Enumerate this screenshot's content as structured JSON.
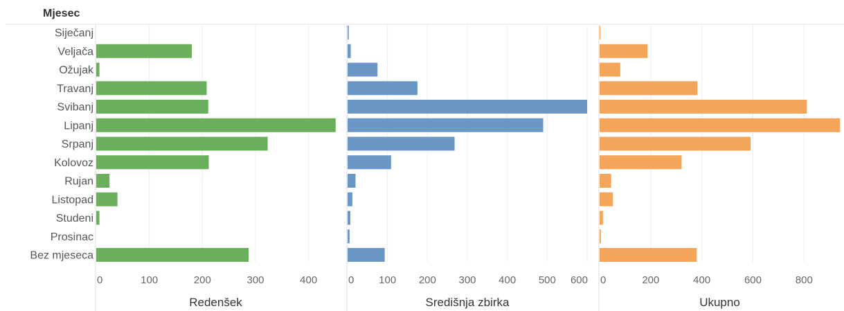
{
  "chart_data": {
    "type": "bar",
    "orientation": "horizontal",
    "row_header": "Mjesec",
    "categories": [
      "Siječanj",
      "Veljača",
      "Ožujak",
      "Travanj",
      "Svibanj",
      "Lipanj",
      "Srpanj",
      "Kolovoz",
      "Rujan",
      "Listopad",
      "Studeni",
      "Prosinac",
      "Bez mjeseca"
    ],
    "series": [
      {
        "name": "Redenšek",
        "color": "#6aaf5c",
        "values": [
          0,
          180,
          6,
          208,
          211,
          451,
          323,
          212,
          25,
          40,
          6,
          0,
          287
        ],
        "xlim": [
          0,
          450
        ],
        "ticks": [
          0,
          100,
          200,
          300,
          400
        ]
      },
      {
        "name": "Središnja zbirka",
        "color": "#6b97c6",
        "values": [
          3,
          8,
          75,
          175,
          600,
          490,
          268,
          109,
          20,
          12,
          7,
          5,
          93
        ],
        "xlim": [
          0,
          600
        ],
        "ticks": [
          0,
          100,
          200,
          300,
          400,
          500,
          600
        ]
      },
      {
        "name": "Ukupno",
        "color": "#f5a55a",
        "values": [
          3,
          188,
          81,
          383,
          811,
          941,
          591,
          321,
          45,
          52,
          13,
          5,
          380
        ],
        "xlim": [
          0,
          940
        ],
        "ticks": [
          0,
          200,
          400,
          600,
          800
        ]
      }
    ],
    "grid": true,
    "legend": "none"
  }
}
